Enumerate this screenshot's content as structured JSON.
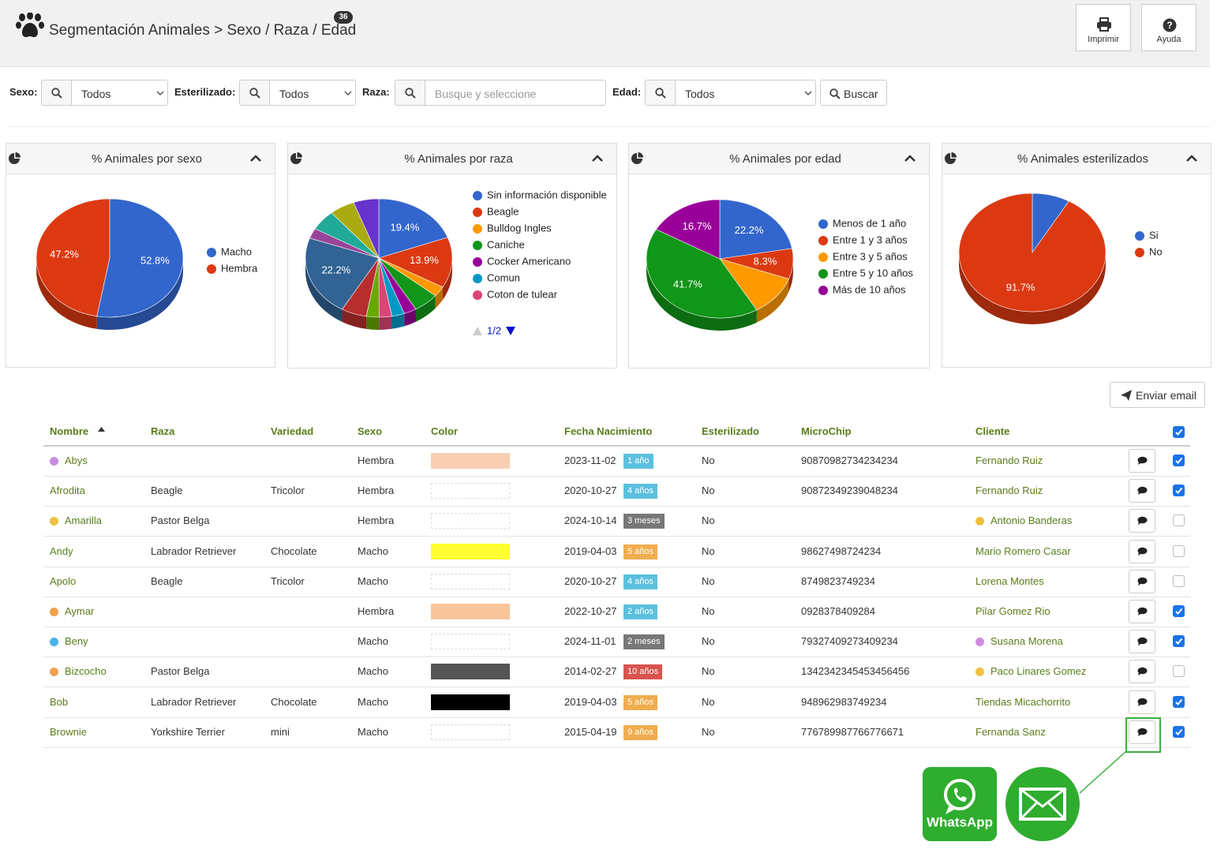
{
  "header": {
    "title": "Segmentación Animales > Sexo / Raza / Edad",
    "badge": 36,
    "buttons": [
      "Imprimir",
      "Ayuda"
    ]
  },
  "filters": [
    {
      "label": "Sexo:",
      "value": "Todos"
    },
    {
      "label": "Esterilizado:",
      "value": "Todos"
    },
    {
      "label": "Raza:",
      "placeholder": "Busque y seleccione"
    },
    {
      "label": "Edad:",
      "value": "Todos"
    }
  ],
  "search_button": "Buscar",
  "chart_data": [
    {
      "type": "pie",
      "title": "% Animales por sexo",
      "categories": [
        "Macho",
        "Hembra"
      ],
      "values": [
        52.8,
        47.2
      ],
      "value_labels": [
        "52.8%",
        "47.2%"
      ],
      "colors": [
        "#3366cc",
        "#dc3912"
      ]
    },
    {
      "type": "pie",
      "title": "% Animales por raza",
      "categories": [
        "Sin información disponible",
        "Beagle",
        "Bulldog Ingles",
        "Caniche",
        "Cocker Americano",
        "Comun",
        "Coton de tulear",
        null,
        null,
        null,
        null,
        null,
        null,
        null
      ],
      "values": [
        19.4,
        13.9,
        2.8,
        5.6,
        2.8,
        2.8,
        2.8,
        2.8,
        5.6,
        22.2,
        2.8,
        5.6,
        5.6,
        5.6
      ],
      "value_labels": [
        "19.4%",
        "13.9%",
        null,
        null,
        null,
        null,
        null,
        null,
        null,
        "22.2%",
        null,
        null,
        null,
        null
      ],
      "colors": [
        "#3366cc",
        "#dc3912",
        "#ff9900",
        "#109618",
        "#990099",
        "#0099c6",
        "#dd4477",
        "#66aa00",
        "#b82e2e",
        "#316395",
        "#994499",
        "#22aa99",
        "#aaaa11",
        "#6633cc"
      ],
      "legend_page": "1/2"
    },
    {
      "type": "pie",
      "title": "% Animales por edad",
      "categories": [
        "Menos de 1 año",
        "Entre 1 y 3 años",
        "Entre 3 y 5 años",
        "Entre 5 y 10 años",
        "Más de 10 años"
      ],
      "values": [
        22.2,
        8.3,
        11.1,
        41.7,
        16.7
      ],
      "value_labels": [
        "22.2%",
        "8.3%",
        null,
        "41.7%",
        "16.7%"
      ],
      "colors": [
        "#3366cc",
        "#dc3912",
        "#ff9900",
        "#109618",
        "#990099"
      ]
    },
    {
      "type": "pie",
      "title": "% Animales esterilizados",
      "categories": [
        "Si",
        "No"
      ],
      "values": [
        8.3,
        91.7
      ],
      "value_labels": [
        null,
        "91.7%"
      ],
      "colors": [
        "#3366cc",
        "#dc3912"
      ]
    }
  ],
  "email_button": "Enviar email",
  "table": {
    "columns": [
      "Nombre",
      "Raza",
      "Variedad",
      "Sexo",
      "Color",
      "Fecha Nacimiento",
      "Esterilizado",
      "MicroChip",
      "Cliente"
    ],
    "rows": [
      {
        "nombre": "Abys",
        "dot": "#c98be0",
        "raza": null,
        "variedad": null,
        "sexo": "Hembra",
        "color": "#f9cfb4",
        "fecha": "2023-11-02",
        "edad": "1 año",
        "edad_color": "#5bc0de",
        "esterilizado": "No",
        "microchip": "90870982734234234",
        "cliente": "Fernando Ruiz",
        "cliente_dot": null,
        "checked": true
      },
      {
        "nombre": "Afrodita",
        "dot": null,
        "raza": "Beagle",
        "variedad": "Tricolor",
        "sexo": "Hembra",
        "color": null,
        "fecha": "2020-10-27",
        "edad": "4 años",
        "edad_color": "#5bc0de",
        "esterilizado": "No",
        "microchip": "90872349239048234",
        "cliente": "Fernando Ruiz",
        "cliente_dot": null,
        "checked": true
      },
      {
        "nombre": "Amarilla",
        "dot": "#f0c040",
        "raza": "Pastor Belga",
        "variedad": null,
        "sexo": "Hembra",
        "color": null,
        "fecha": "2024-10-14",
        "edad": "3 meses",
        "edad_color": "#777777",
        "esterilizado": "No",
        "microchip": null,
        "cliente": "Antonio Banderas",
        "cliente_dot": "#f0c040",
        "checked": false
      },
      {
        "nombre": "Andy",
        "dot": null,
        "raza": "Labrador Retriever",
        "variedad": "Chocolate",
        "sexo": "Macho",
        "color": "#ffff33",
        "fecha": "2019-04-03",
        "edad": "5 años",
        "edad_color": "#f0ad4e",
        "esterilizado": "No",
        "microchip": "98627498724234",
        "cliente": "Mario Romero Casar",
        "cliente_dot": null,
        "checked": false
      },
      {
        "nombre": "Apolo",
        "dot": null,
        "raza": "Beagle",
        "variedad": "Tricolor",
        "sexo": "Macho",
        "color": null,
        "fecha": "2020-10-27",
        "edad": "4 años",
        "edad_color": "#5bc0de",
        "esterilizado": "No",
        "microchip": "8749823749234",
        "cliente": "Lorena Montes",
        "cliente_dot": null,
        "checked": false
      },
      {
        "nombre": "Aymar",
        "dot": "#f0a050",
        "raza": null,
        "variedad": null,
        "sexo": "Hembra",
        "color": "#f8c49c",
        "fecha": "2022-10-27",
        "edad": "2 años",
        "edad_color": "#5bc0de",
        "esterilizado": "No",
        "microchip": "0928378409284",
        "cliente": "Pilar Gomez Rio",
        "cliente_dot": null,
        "checked": true
      },
      {
        "nombre": "Beny",
        "dot": "#4ab0e8",
        "raza": null,
        "variedad": null,
        "sexo": "Macho",
        "color": null,
        "fecha": "2024-11-01",
        "edad": "2 meses",
        "edad_color": "#777777",
        "esterilizado": "No",
        "microchip": "79327409273409234",
        "cliente": "Susana Morena",
        "cliente_dot": "#d08be0",
        "checked": true
      },
      {
        "nombre": "Bizcocho",
        "dot": "#f0a050",
        "raza": "Pastor Belga",
        "variedad": null,
        "sexo": "Macho",
        "color": "#555555",
        "fecha": "2014-02-27",
        "edad": "10 años",
        "edad_color": "#d9534f",
        "esterilizado": "No",
        "microchip": "1342342345453456456",
        "cliente": "Paco Linares Gomez",
        "cliente_dot": "#f0c040",
        "checked": false
      },
      {
        "nombre": "Bob",
        "dot": null,
        "raza": "Labrador Retriever",
        "variedad": "Chocolate",
        "sexo": "Macho",
        "color": "#000000",
        "fecha": "2019-04-03",
        "edad": "5 años",
        "edad_color": "#f0ad4e",
        "esterilizado": "No",
        "microchip": "948962983749234",
        "cliente": "Tiendas Micachorrito",
        "cliente_dot": null,
        "checked": true
      },
      {
        "nombre": "Brownie",
        "dot": null,
        "raza": "Yorkshire Terrier",
        "variedad": "mini",
        "sexo": "Macho",
        "color": null,
        "fecha": "2015-04-19",
        "edad": "9 años",
        "edad_color": "#f0ad4e",
        "esterilizado": "No",
        "microchip": "776789987766776671",
        "cliente": "Fernanda Sanz",
        "cliente_dot": null,
        "checked": true
      }
    ]
  },
  "share": {
    "whatsapp": "WhatsApp"
  }
}
